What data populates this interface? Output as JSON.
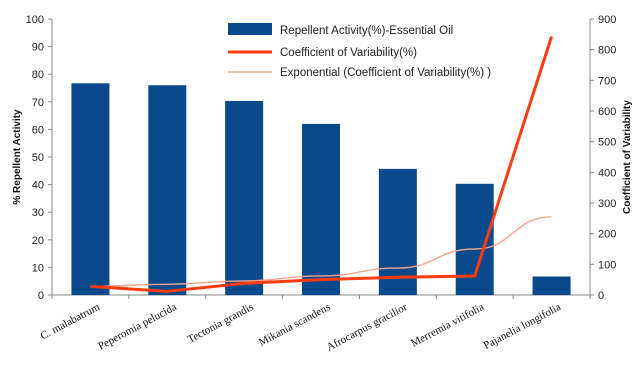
{
  "chart_data": {
    "type": "bar",
    "categories": [
      "C. malabatrum",
      "Peperomia pelucida",
      "Tectonia grandis",
      "Mikania scandens",
      "Afrocarpus gracilior",
      "Merremia vitifolia",
      "Pajanelia longifolia"
    ],
    "series": [
      {
        "name": "Repellent Activity(%)-Essential Oil",
        "type": "bar",
        "axis": "left",
        "color": "#0a4a8c",
        "values": [
          76.7,
          76.0,
          70.3,
          62.0,
          45.7,
          40.3,
          6.7
        ]
      },
      {
        "name": "Coefficient of Variability(%)",
        "type": "line",
        "axis": "right",
        "color": "#ff3b0f",
        "values": [
          28,
          12,
          38,
          50,
          58,
          62,
          843
        ]
      },
      {
        "name": "Exponential (Coefficient of Variability(%) )",
        "type": "trendline",
        "axis": "right",
        "color": "#f4a48c",
        "values": [
          28,
          35,
          46,
          62,
          88,
          150,
          255
        ]
      }
    ],
    "ylabel": "% Repellent Activity",
    "y2label": "Coefficient of Variability",
    "ylim": [
      0,
      100
    ],
    "y2lim": [
      0,
      900
    ],
    "yticks": [
      "0",
      "10",
      "20",
      "30",
      "40",
      "50",
      "60",
      "70",
      "80",
      "90",
      "100"
    ],
    "y2ticks": [
      "0",
      "100",
      "200",
      "300",
      "400",
      "500",
      "600",
      "700",
      "800",
      "900"
    ],
    "grid": false,
    "legend_position": "top-center"
  }
}
